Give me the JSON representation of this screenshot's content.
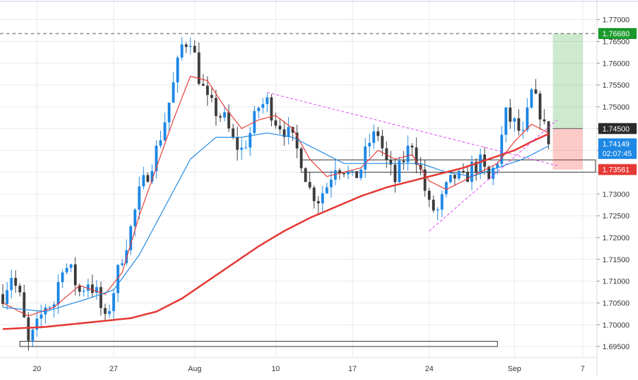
{
  "chart_data": {
    "type": "candlestick",
    "y_axis": {
      "position": "right",
      "range": [
        1.6925,
        1.7745
      ],
      "ticks": [
        "1.77000",
        "1.76500",
        "1.76000",
        "1.75500",
        "1.75000",
        "1.74500",
        "1.74000",
        "1.73500",
        "1.73000",
        "1.72500",
        "1.72000",
        "1.71500",
        "1.71000",
        "1.70500",
        "1.70000",
        "1.69500"
      ],
      "tick_values": [
        1.77,
        1.765,
        1.76,
        1.755,
        1.75,
        1.745,
        1.74,
        1.735,
        1.73,
        1.725,
        1.72,
        1.715,
        1.71,
        1.705,
        1.7,
        1.695
      ]
    },
    "x_axis": {
      "ticks": [
        {
          "label": "20",
          "bar": 8
        },
        {
          "label": "27",
          "bar": 26
        },
        {
          "label": "Aug",
          "bar": 45
        },
        {
          "label": "10",
          "bar": 64
        },
        {
          "label": "17",
          "bar": 82
        },
        {
          "label": "24",
          "bar": 100
        },
        {
          "label": "Sep",
          "bar": 120
        },
        {
          "label": "7",
          "bar": 136
        }
      ]
    },
    "bars_total_slots": 140,
    "anchor_points": [
      [
        0,
        1.707
      ],
      [
        2,
        1.7115
      ],
      [
        4,
        1.706
      ],
      [
        6,
        1.6955
      ],
      [
        8,
        1.6995
      ],
      [
        10,
        1.7045
      ],
      [
        12,
        1.705
      ],
      [
        14,
        1.714
      ],
      [
        16,
        1.712
      ],
      [
        18,
        1.7075
      ],
      [
        20,
        1.71
      ],
      [
        22,
        1.707
      ],
      [
        24,
        1.7005
      ],
      [
        26,
        1.708
      ],
      [
        28,
        1.716
      ],
      [
        30,
        1.722
      ],
      [
        32,
        1.73
      ],
      [
        34,
        1.735
      ],
      [
        36,
        1.74
      ],
      [
        38,
        1.747
      ],
      [
        40,
        1.755
      ],
      [
        42,
        1.764
      ],
      [
        44,
        1.766
      ],
      [
        46,
        1.757
      ],
      [
        48,
        1.751
      ],
      [
        50,
        1.749
      ],
      [
        52,
        1.747
      ],
      [
        54,
        1.742
      ],
      [
        56,
        1.74
      ],
      [
        58,
        1.744
      ],
      [
        60,
        1.75
      ],
      [
        62,
        1.751
      ],
      [
        64,
        1.747
      ],
      [
        66,
        1.745
      ],
      [
        68,
        1.742
      ],
      [
        70,
        1.738
      ],
      [
        72,
        1.731
      ],
      [
        74,
        1.729
      ],
      [
        76,
        1.732
      ],
      [
        78,
        1.737
      ],
      [
        80,
        1.736
      ],
      [
        82,
        1.733
      ],
      [
        84,
        1.736
      ],
      [
        86,
        1.742
      ],
      [
        88,
        1.744
      ],
      [
        90,
        1.737
      ],
      [
        92,
        1.733
      ],
      [
        94,
        1.738
      ],
      [
        96,
        1.742
      ],
      [
        98,
        1.735
      ],
      [
        100,
        1.727
      ],
      [
        102,
        1.726
      ],
      [
        104,
        1.731
      ],
      [
        106,
        1.734
      ],
      [
        108,
        1.733
      ],
      [
        110,
        1.736
      ],
      [
        112,
        1.737
      ],
      [
        114,
        1.733
      ],
      [
        116,
        1.738
      ],
      [
        118,
        1.748
      ],
      [
        120,
        1.746
      ],
      [
        122,
        1.743
      ],
      [
        124,
        1.753
      ],
      [
        126,
        1.749
      ],
      [
        127,
        1.745
      ],
      [
        128,
        1.7414
      ]
    ],
    "moving_averages": [
      {
        "color": "#e53935",
        "width": 1.2,
        "anchors": [
          [
            0,
            1.705
          ],
          [
            6,
            1.702
          ],
          [
            12,
            1.704
          ],
          [
            18,
            1.709
          ],
          [
            24,
            1.707
          ],
          [
            28,
            1.712
          ],
          [
            32,
            1.725
          ],
          [
            36,
            1.736
          ],
          [
            40,
            1.747
          ],
          [
            44,
            1.757
          ],
          [
            48,
            1.756
          ],
          [
            52,
            1.75
          ],
          [
            56,
            1.745
          ],
          [
            60,
            1.747
          ],
          [
            64,
            1.748
          ],
          [
            68,
            1.745
          ],
          [
            72,
            1.738
          ],
          [
            76,
            1.734
          ],
          [
            80,
            1.735
          ],
          [
            84,
            1.736
          ],
          [
            88,
            1.74
          ],
          [
            92,
            1.738
          ],
          [
            96,
            1.739
          ],
          [
            100,
            1.733
          ],
          [
            104,
            1.731
          ],
          [
            108,
            1.733
          ],
          [
            112,
            1.735
          ],
          [
            116,
            1.737
          ],
          [
            120,
            1.742
          ],
          [
            124,
            1.746
          ],
          [
            128,
            1.744
          ]
        ]
      },
      {
        "color": "#1e88e5",
        "width": 1.2,
        "anchors": [
          [
            0,
            1.704
          ],
          [
            10,
            1.703
          ],
          [
            20,
            1.706
          ],
          [
            26,
            1.708
          ],
          [
            32,
            1.716
          ],
          [
            38,
            1.727
          ],
          [
            44,
            1.738
          ],
          [
            50,
            1.743
          ],
          [
            56,
            1.743
          ],
          [
            62,
            1.744
          ],
          [
            68,
            1.743
          ],
          [
            74,
            1.74
          ],
          [
            80,
            1.737
          ],
          [
            86,
            1.737
          ],
          [
            92,
            1.737
          ],
          [
            98,
            1.737
          ],
          [
            104,
            1.735
          ],
          [
            110,
            1.734
          ],
          [
            116,
            1.736
          ],
          [
            122,
            1.738
          ],
          [
            128,
            1.741
          ]
        ]
      },
      {
        "color": "#e53935",
        "width": 2.6,
        "anchors": [
          [
            0,
            1.699
          ],
          [
            10,
            1.6995
          ],
          [
            20,
            1.7005
          ],
          [
            30,
            1.7015
          ],
          [
            36,
            1.703
          ],
          [
            42,
            1.706
          ],
          [
            48,
            1.71
          ],
          [
            54,
            1.714
          ],
          [
            60,
            1.718
          ],
          [
            66,
            1.7215
          ],
          [
            72,
            1.7245
          ],
          [
            78,
            1.727
          ],
          [
            84,
            1.7295
          ],
          [
            90,
            1.7315
          ],
          [
            96,
            1.733
          ],
          [
            102,
            1.7345
          ],
          [
            108,
            1.736
          ],
          [
            114,
            1.738
          ],
          [
            120,
            1.74
          ],
          [
            124,
            1.742
          ],
          [
            128,
            1.7438
          ]
        ]
      }
    ],
    "horizontal_line": {
      "value": 1.7668,
      "style": "dashed",
      "color": "#555555"
    },
    "trendlines": [
      {
        "from": [
          62,
          1.7533
        ],
        "to": [
          130,
          1.7365
        ],
        "color": "#e040fb"
      },
      {
        "from": [
          100,
          1.7215
        ],
        "to": [
          130,
          1.747
        ],
        "color": "#e040fb"
      }
    ],
    "boxes": [
      {
        "from": [
          70,
          1.7378
        ],
        "to": [
          139,
          1.735
        ],
        "color": "#333333"
      },
      {
        "from": [
          4,
          1.6962
        ],
        "to": [
          116,
          1.695
        ],
        "color": "#333333"
      }
    ],
    "position_tool": {
      "from_bar": 129,
      "to_bar": 136,
      "entry": 1.745,
      "target": 1.7668,
      "stop": 1.7356
    },
    "price_labels": [
      {
        "text": "1.76680",
        "value": 1.7668,
        "bg": "#1b9a2b",
        "fg": "#ffffff"
      },
      {
        "text": "1.74500",
        "value": 1.745,
        "bg": "#2b2b2b",
        "fg": "#ffffff"
      },
      {
        "text": "1.74149",
        "value": 1.74149,
        "bg": "#1e88e5",
        "fg": "#ffffff",
        "sub": "02:07:45"
      },
      {
        "text": "1.73561",
        "value": 1.73561,
        "bg": "#e53935",
        "fg": "#ffffff"
      }
    ],
    "colors": {
      "up": "#1e88e5",
      "down": "#3c3c3c",
      "grid": "#e6e9ef"
    }
  }
}
